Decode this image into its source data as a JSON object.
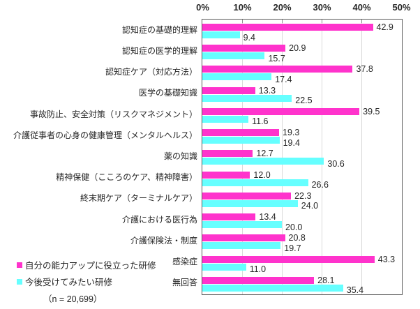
{
  "chart_data": {
    "type": "bar",
    "orientation": "horizontal",
    "title": "",
    "categories": [
      "認知症の基礎的理解",
      "認知症の医学的理解",
      "認知症ケア（対応方法）",
      "医学の基礎知識",
      "事故防止、安全対策（リスクマネジメント）",
      "介護従事者の心身の健康管理（メンタルヘルス）",
      "薬の知識",
      "精神保健（こころのケア、精神障害）",
      "終末期ケア（ターミナルケア）",
      "介護における医行為",
      "介護保険法・制度",
      "感染症",
      "無回答"
    ],
    "series": [
      {
        "name": "自分の能力アップに役立った研修",
        "color": "#FF33CC",
        "values": [
          42.9,
          20.9,
          37.8,
          13.3,
          39.5,
          19.3,
          12.7,
          12.0,
          22.3,
          13.4,
          20.8,
          43.3,
          28.1
        ]
      },
      {
        "name": "今後受けてみたい研修",
        "color": "#66FFFF",
        "values": [
          9.4,
          15.7,
          17.4,
          22.5,
          11.6,
          19.4,
          30.6,
          26.6,
          24.0,
          20.0,
          19.7,
          11.0,
          35.4
        ]
      }
    ],
    "xlim": [
      0,
      50
    ],
    "x_ticks": [
      "0%",
      "10%",
      "20%",
      "30%",
      "40%",
      "50%"
    ],
    "grid": true,
    "legend_position": "bottom-left",
    "legend_note": "（n = 20,699）",
    "colors": {
      "text": "#262626",
      "gridline": "#d9d9d9",
      "plot_border": "#595959"
    }
  }
}
